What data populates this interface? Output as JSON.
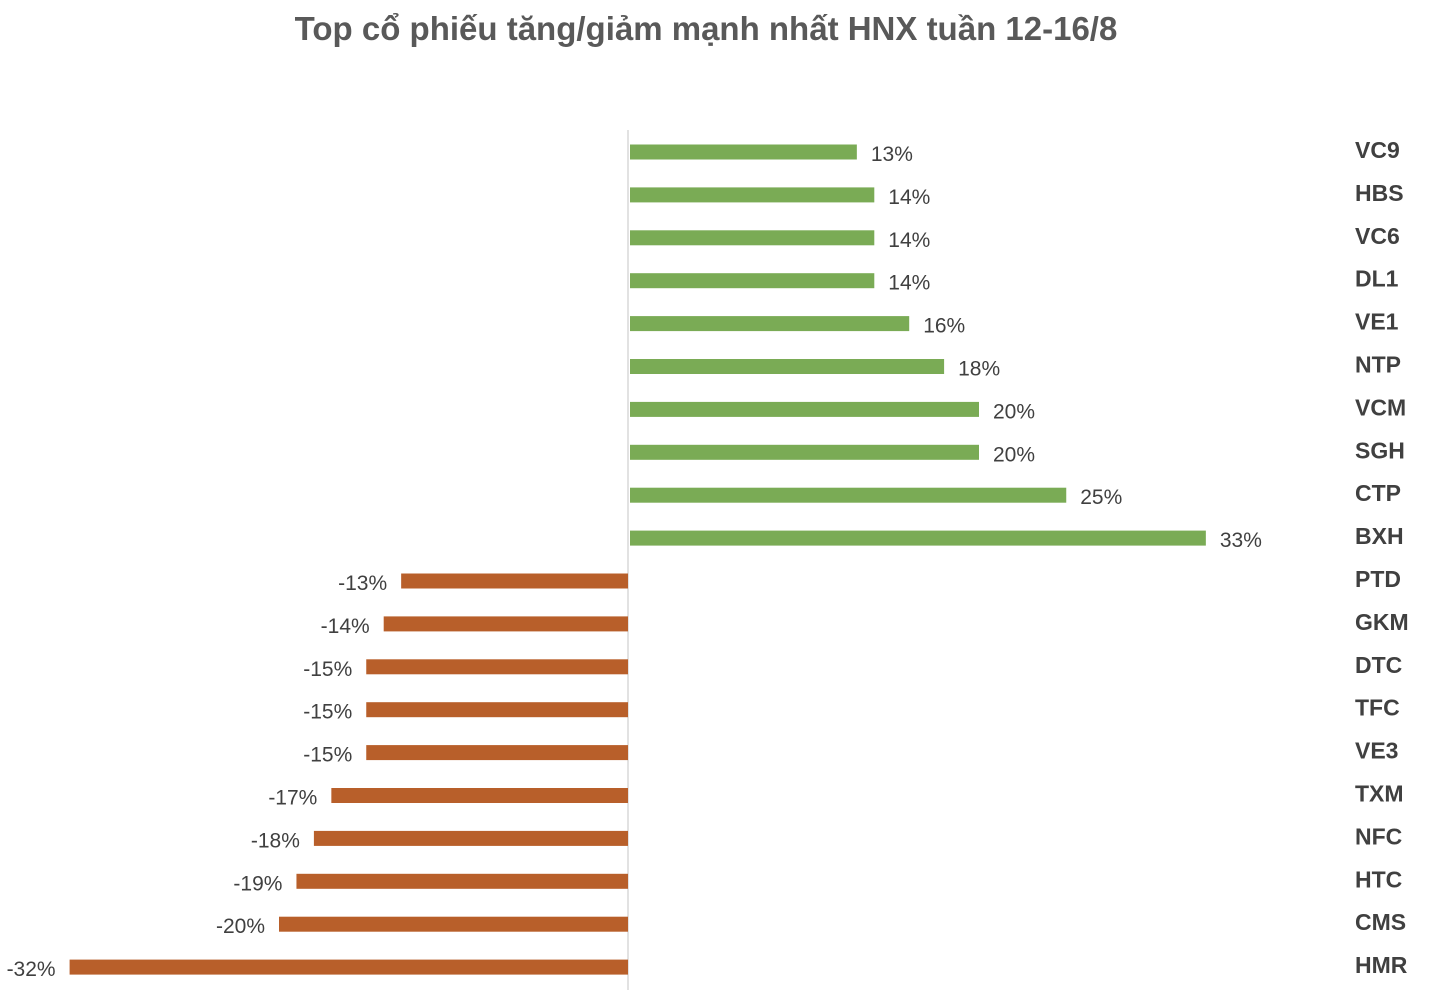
{
  "chart_data": {
    "type": "bar",
    "orientation": "horizontal",
    "title": "Top cổ phiếu tăng/giảm mạnh nhất HNX tuần 12-16/8",
    "categories": [
      "VC9",
      "HBS",
      "VC6",
      "DL1",
      "VE1",
      "NTP",
      "VCM",
      "SGH",
      "CTP",
      "BXH",
      "PTD",
      "GKM",
      "DTC",
      "TFC",
      "VE3",
      "TXM",
      "NFC",
      "HTC",
      "CMS",
      "HMR"
    ],
    "values": [
      13,
      14,
      14,
      14,
      16,
      18,
      20,
      20,
      25,
      33,
      -13,
      -14,
      -15,
      -15,
      -15,
      -17,
      -18,
      -19,
      -20,
      -32
    ],
    "labels": [
      "13%",
      "14%",
      "14%",
      "14%",
      "16%",
      "18%",
      "20%",
      "20%",
      "25%",
      "33%",
      "-13%",
      "-14%",
      "-15%",
      "-15%",
      "-15%",
      "-17%",
      "-18%",
      "-19%",
      "-20%",
      "-32%"
    ],
    "unit": "%",
    "colors": {
      "positive": "#7aab55",
      "negative": "#b85f2a",
      "axis": "#d9d9d9"
    },
    "grid": false,
    "legend": "none"
  }
}
